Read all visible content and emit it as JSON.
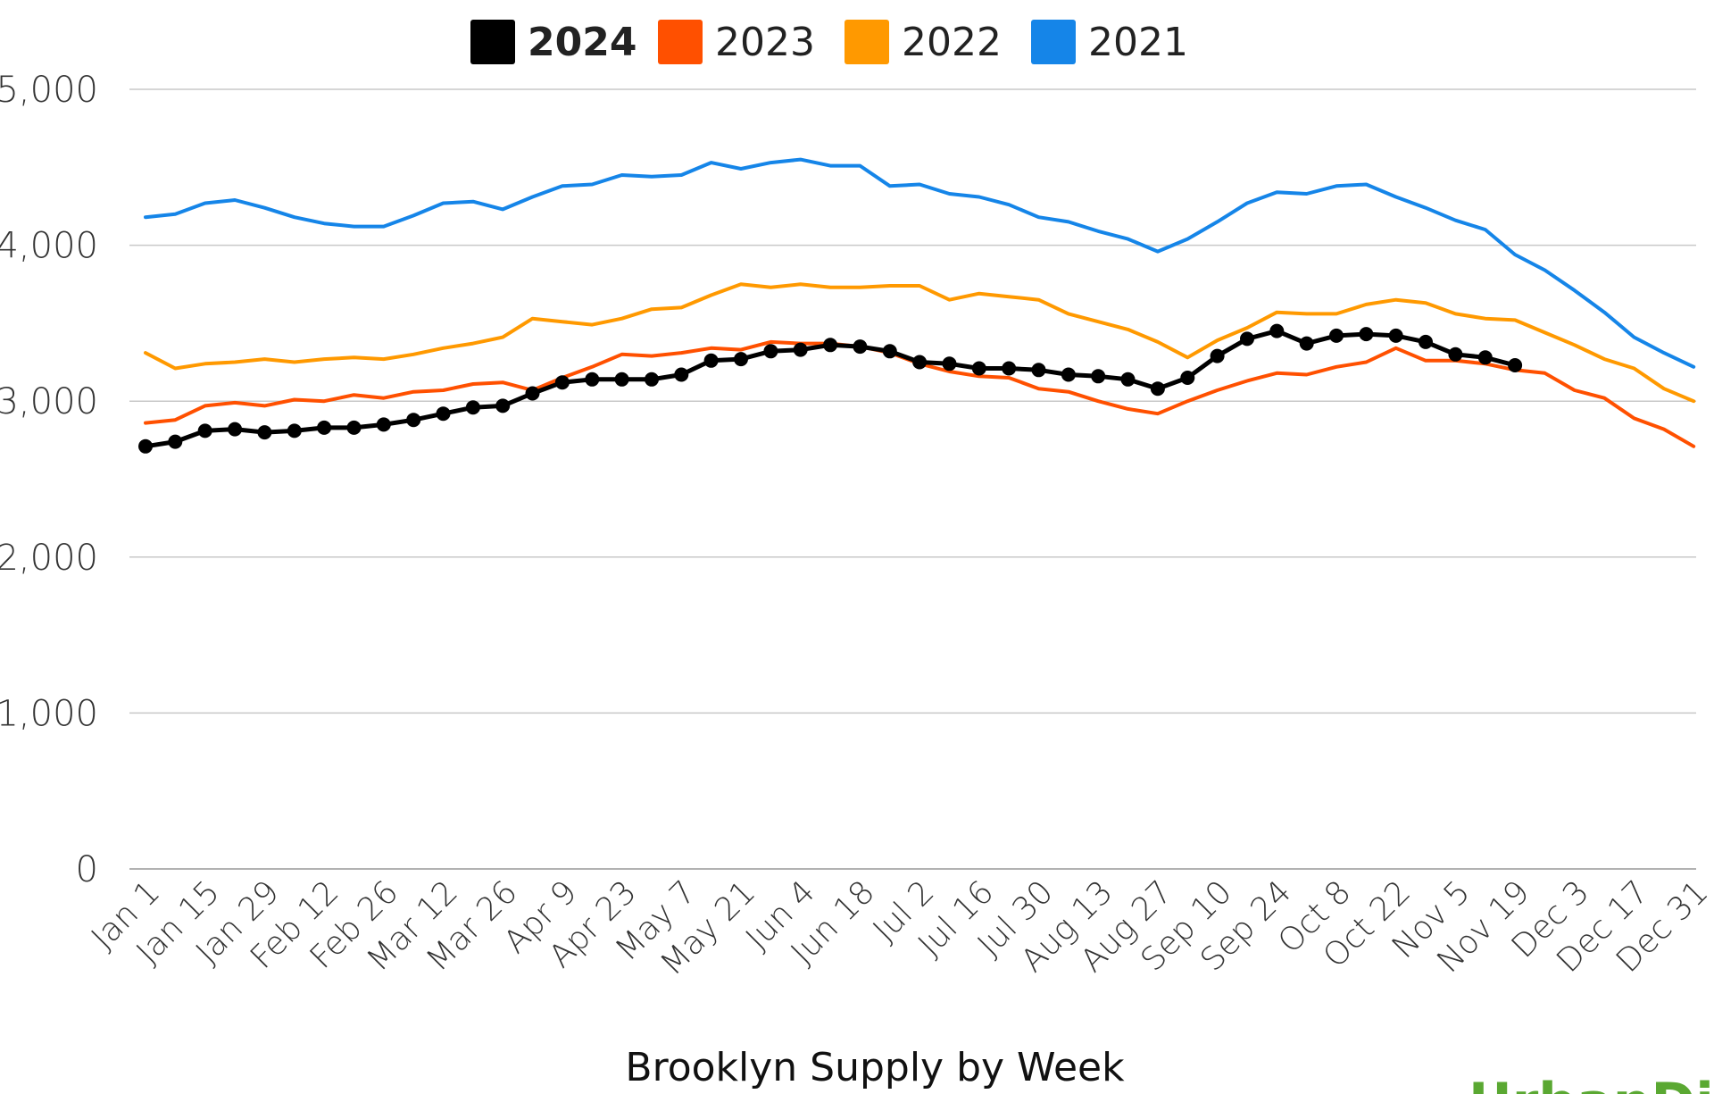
{
  "chart_data": {
    "type": "line",
    "title": "Brooklyn Supply by Week",
    "xlabel": "",
    "ylabel": "",
    "ylim": [
      0,
      5000
    ],
    "yticks": [
      "0",
      "1,000",
      "2,000",
      "3,000",
      "4,000",
      "5,000"
    ],
    "x_tick_labels": [
      "Jan 1",
      "Jan 15",
      "Jan 29",
      "Feb 12",
      "Feb 26",
      "Mar 12",
      "Mar 26",
      "Apr 9",
      "Apr 23",
      "May 7",
      "May 21",
      "Jun 4",
      "Jun 18",
      "Jul 2",
      "Jul 16",
      "Jul 30",
      "Aug 13",
      "Aug 27",
      "Sep 10",
      "Sep 24",
      "Oct 8",
      "Oct 22",
      "Nov 5",
      "Nov 19",
      "Dec 3",
      "Dec 17",
      "Dec 31"
    ],
    "grid": "horizontal",
    "legend_position": "top-center",
    "series": [
      {
        "name": "2024",
        "color": "#000000",
        "markers": true,
        "values": [
          2710,
          2740,
          2810,
          2820,
          2800,
          2810,
          2830,
          2830,
          2850,
          2880,
          2920,
          2960,
          2970,
          3050,
          3120,
          3140,
          3140,
          3140,
          3170,
          3260,
          3270,
          3320,
          3330,
          3360,
          3350,
          3320,
          3250,
          3240,
          3210,
          3210,
          3200,
          3170,
          3160,
          3140,
          3080,
          3150,
          3290,
          3400,
          3450,
          3370,
          3420,
          3430,
          3420,
          3380,
          3300,
          3280,
          3230
        ]
      },
      {
        "name": "2023",
        "color": "#ff5000",
        "markers": false,
        "values": [
          2860,
          2880,
          2970,
          2990,
          2970,
          3010,
          3000,
          3040,
          3020,
          3060,
          3070,
          3110,
          3120,
          3070,
          3150,
          3220,
          3300,
          3290,
          3310,
          3340,
          3330,
          3380,
          3370,
          3370,
          3350,
          3310,
          3240,
          3190,
          3160,
          3150,
          3080,
          3060,
          3000,
          2950,
          2920,
          3000,
          3070,
          3130,
          3180,
          3170,
          3220,
          3250,
          3340,
          3260,
          3260,
          3240,
          3200,
          3180,
          3070,
          3020,
          2890,
          2820,
          2710
        ]
      },
      {
        "name": "2022",
        "color": "#ff9900",
        "markers": false,
        "values": [
          3310,
          3210,
          3240,
          3250,
          3270,
          3250,
          3270,
          3280,
          3270,
          3300,
          3340,
          3370,
          3410,
          3530,
          3510,
          3490,
          3530,
          3590,
          3600,
          3680,
          3750,
          3730,
          3750,
          3730,
          3730,
          3740,
          3740,
          3650,
          3690,
          3670,
          3650,
          3560,
          3510,
          3460,
          3380,
          3280,
          3390,
          3470,
          3570,
          3560,
          3560,
          3620,
          3650,
          3630,
          3560,
          3530,
          3520,
          3440,
          3360,
          3270,
          3210,
          3080,
          3000
        ]
      },
      {
        "name": "2021",
        "color": "#1585e8",
        "markers": false,
        "values": [
          4180,
          4200,
          4270,
          4290,
          4240,
          4180,
          4140,
          4120,
          4120,
          4190,
          4270,
          4280,
          4230,
          4310,
          4380,
          4390,
          4450,
          4440,
          4450,
          4530,
          4490,
          4530,
          4550,
          4510,
          4510,
          4380,
          4390,
          4330,
          4310,
          4260,
          4180,
          4150,
          4090,
          4040,
          3960,
          4040,
          4150,
          4270,
          4340,
          4330,
          4380,
          4390,
          4310,
          4240,
          4160,
          4100,
          3940,
          3840,
          3710,
          3570,
          3410,
          3310,
          3220
        ]
      }
    ]
  },
  "watermark": "UrbanDigs"
}
